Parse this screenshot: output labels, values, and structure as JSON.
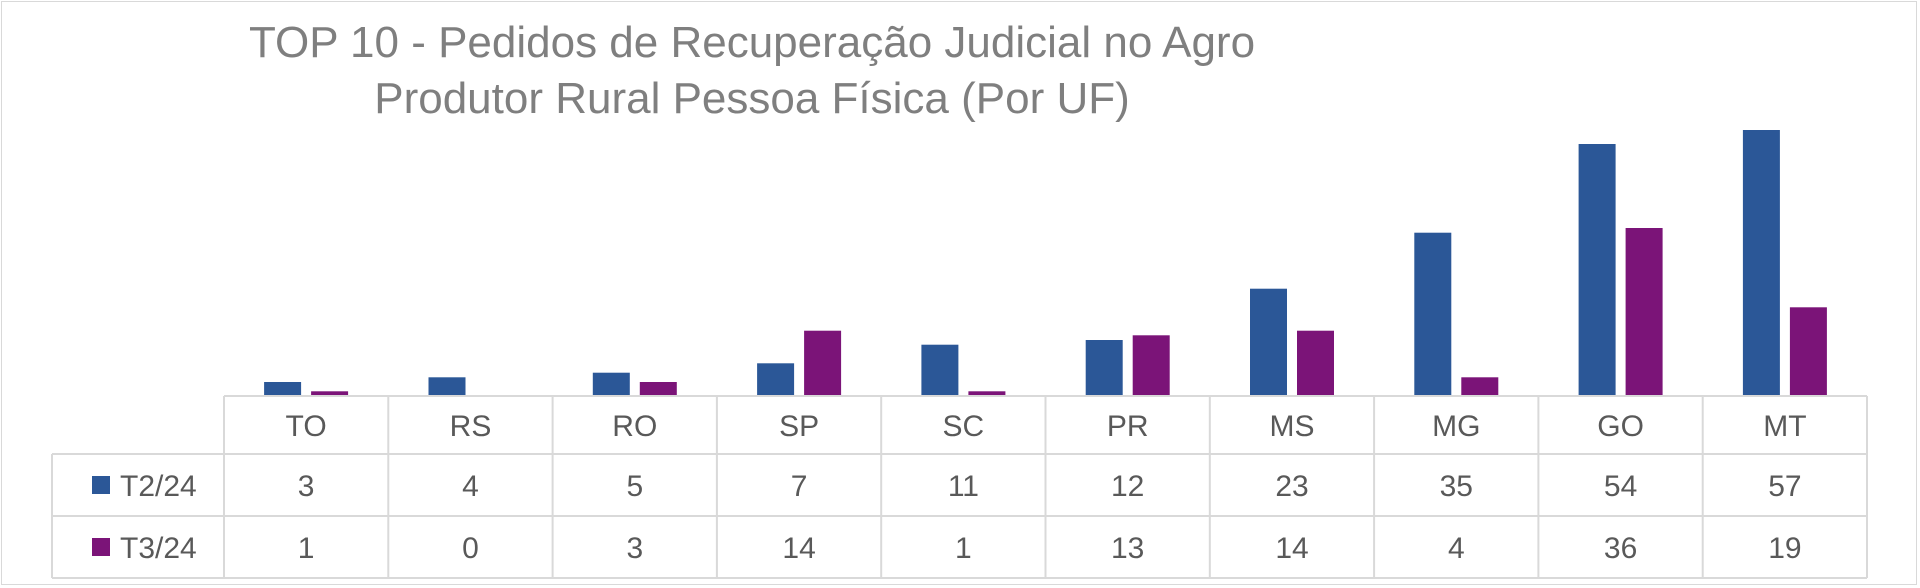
{
  "chart_data": {
    "type": "bar",
    "title_lines": [
      "TOP 10 - Pedidos de Recuperação Judicial no Agro",
      "Produtor Rural Pessoa Física (Por UF)"
    ],
    "categories": [
      "TO",
      "RS",
      "RO",
      "SP",
      "SC",
      "PR",
      "MS",
      "MG",
      "GO",
      "MT"
    ],
    "series": [
      {
        "name": "T2/24",
        "color": "#2b5797",
        "values": [
          3,
          4,
          5,
          7,
          11,
          12,
          23,
          35,
          54,
          57
        ]
      },
      {
        "name": "T3/24",
        "color": "#7b1478",
        "values": [
          1,
          0,
          3,
          14,
          1,
          13,
          14,
          4,
          36,
          19
        ]
      }
    ],
    "ylim": [
      0,
      57
    ],
    "grid": false,
    "legend": "data-table",
    "data_table": true
  }
}
